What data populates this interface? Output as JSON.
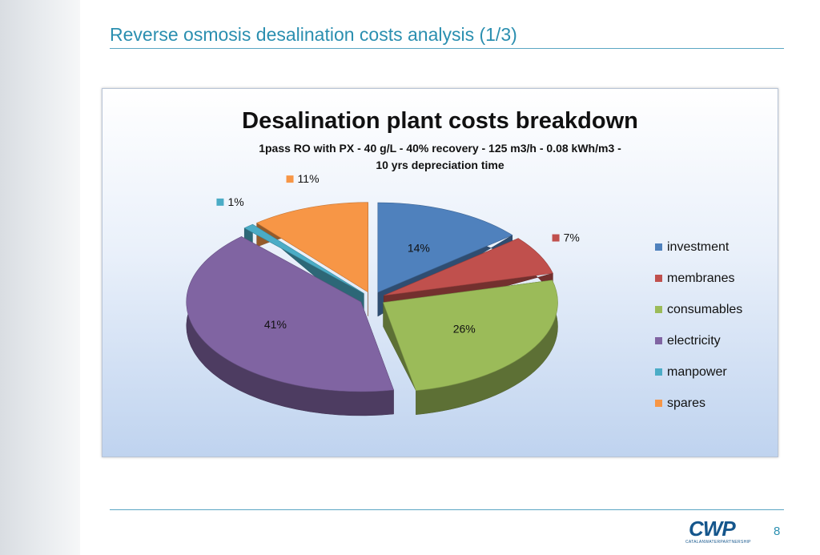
{
  "slide": {
    "title": "Reverse osmosis desalination costs analysis (1/3)",
    "page_number": "8",
    "logo": {
      "mark": "CWP",
      "subtitle": "CATALANWATERPARTNERSHIP"
    }
  },
  "chart_data": {
    "type": "pie",
    "variant": "3d-exploded",
    "title": "Desalination plant costs breakdown",
    "subtitle_lines": [
      "1pass RO with PX - 40 g/L - 40% recovery - 125 m3/h - 0.08 kWh/m3 -",
      "10 yrs depreciation time"
    ],
    "legend_position": "right",
    "slices": [
      {
        "name": "investment",
        "value": 14,
        "label": "14%",
        "color": "#4f81bd"
      },
      {
        "name": "membranes",
        "value": 7,
        "label": "7%",
        "color": "#c0504d"
      },
      {
        "name": "consumables",
        "value": 26,
        "label": "26%",
        "color": "#9bbb59"
      },
      {
        "name": "electricity",
        "value": 41,
        "label": "41%",
        "color": "#8064a2"
      },
      {
        "name": "manpower",
        "value": 1,
        "label": "1%",
        "color": "#4bacc6"
      },
      {
        "name": "spares",
        "value": 11,
        "label": "11%",
        "color": "#f79646"
      }
    ]
  }
}
